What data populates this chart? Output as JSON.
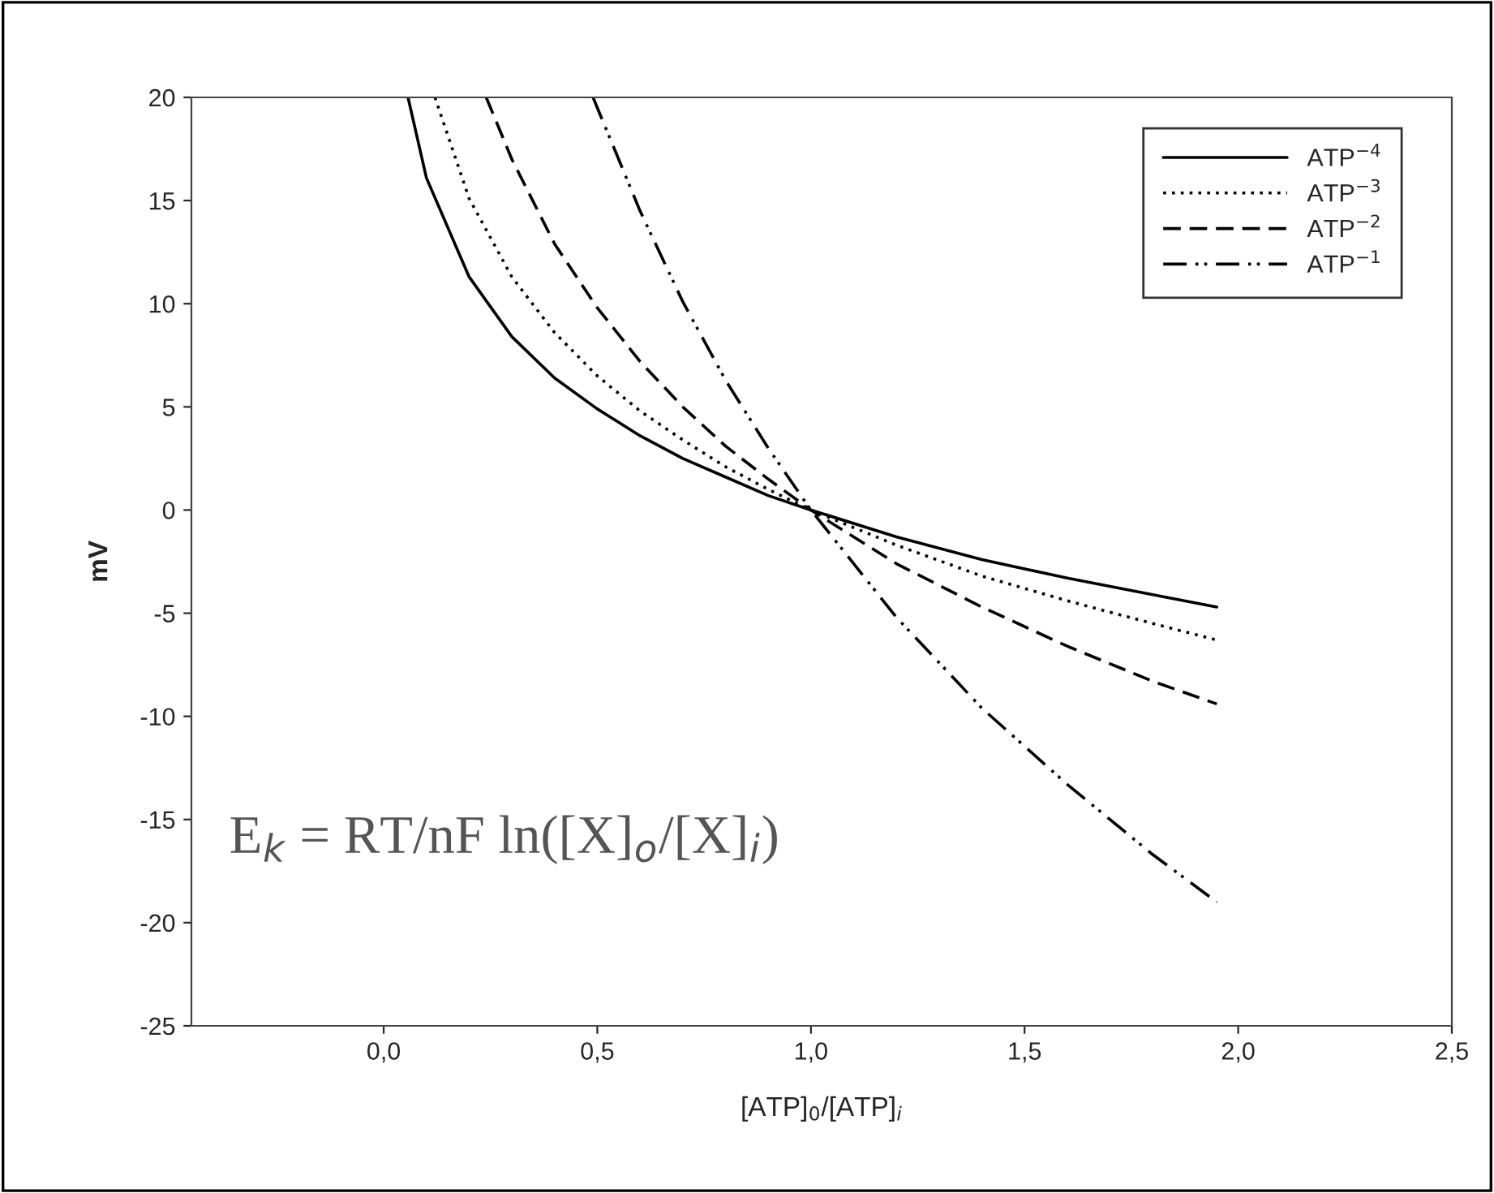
{
  "chart_data": {
    "type": "line",
    "xlabel": "[ATP]$_{0}$/[ATP]$_{i}$",
    "ylabel": "mV",
    "xlim": [
      -0.45,
      2.5
    ],
    "ylim": [
      -25,
      20
    ],
    "xticks": [
      {
        "value": 0,
        "label": "0,0"
      },
      {
        "value": 0.5,
        "label": "0,5"
      },
      {
        "value": 1,
        "label": "1,0"
      },
      {
        "value": 1.5,
        "label": "1,5"
      },
      {
        "value": 2,
        "label": "2,0"
      },
      {
        "value": 2.5,
        "label": "2,5"
      }
    ],
    "yticks": [
      -25,
      -20,
      -15,
      -10,
      -5,
      0,
      5,
      10,
      15,
      20
    ],
    "grid": false,
    "legend": "top right",
    "annotations": [
      "E$_{k}$ = RT/nF ln([X]$_{o}$/[X]$_{i}$)"
    ],
    "series": [
      {
        "name": "ATP$^{−4}$",
        "color": "#000000",
        "line_style": "solid",
        "x": [
          0.057,
          0.1,
          0.2,
          0.3,
          0.4,
          0.5,
          0.6,
          0.7,
          0.8,
          0.9,
          1.0,
          1.2,
          1.4,
          1.6,
          1.8,
          1.95
        ],
        "values": [
          20,
          16.1,
          11.3,
          8.4,
          6.4,
          4.9,
          3.6,
          2.5,
          1.6,
          0.7,
          0,
          -1.3,
          -2.4,
          -3.3,
          -4.1,
          -4.7
        ]
      },
      {
        "name": "ATP$^{−3}$",
        "color": "#000000",
        "line_style": "dotted",
        "x": [
          0.12,
          0.2,
          0.3,
          0.4,
          0.5,
          0.6,
          0.7,
          0.8,
          0.9,
          1.0,
          1.2,
          1.4,
          1.6,
          1.8,
          1.95
        ],
        "values": [
          20,
          15.1,
          11.3,
          8.6,
          6.5,
          4.8,
          3.4,
          2.1,
          1.0,
          0,
          -1.7,
          -3.2,
          -4.4,
          -5.5,
          -6.3
        ]
      },
      {
        "name": "ATP$^{−2}$",
        "color": "#000000",
        "line_style": "dashed",
        "x": [
          0.24,
          0.3,
          0.4,
          0.5,
          0.6,
          0.7,
          0.8,
          0.9,
          1.0,
          1.2,
          1.4,
          1.6,
          1.8,
          1.95
        ],
        "values": [
          20,
          17.0,
          12.9,
          9.8,
          7.2,
          5.0,
          3.1,
          1.5,
          0,
          -2.6,
          -4.7,
          -6.6,
          -8.3,
          -9.4
        ]
      },
      {
        "name": "ATP$^{−1}$",
        "color": "#000000",
        "line_style": "dashdot",
        "x": [
          0.49,
          0.6,
          0.7,
          0.8,
          0.9,
          1.0,
          1.2,
          1.4,
          1.6,
          1.8,
          1.95
        ],
        "values": [
          20,
          14.5,
          10.1,
          6.3,
          3.0,
          0,
          -5.2,
          -9.6,
          -13.3,
          -16.7,
          -19.0
        ]
      }
    ]
  }
}
